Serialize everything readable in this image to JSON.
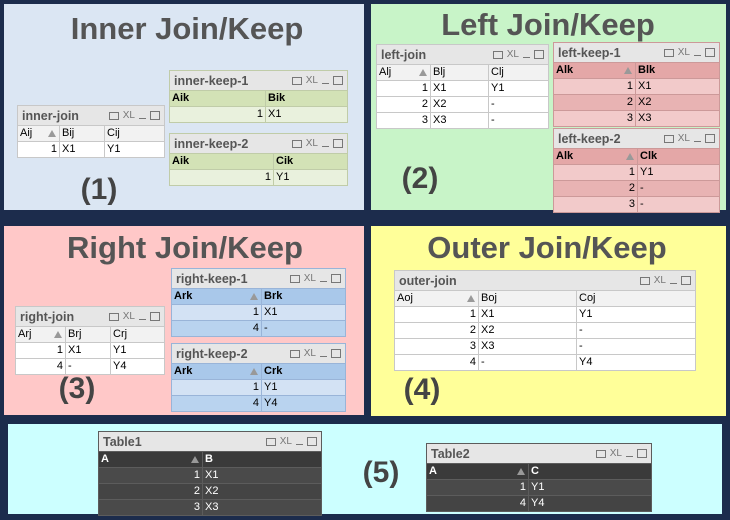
{
  "export_label": "XL",
  "panels": [
    {
      "title": "Inner Join/Keep",
      "label": "(1)",
      "tables": [
        {
          "name": "inner-join",
          "headers": [
            "Aij",
            "Bij",
            "Cij"
          ],
          "rows": [
            [
              1,
              "X1",
              "Y1"
            ]
          ]
        },
        {
          "name": "inner-keep-1",
          "headers": [
            "Aik",
            "Bik"
          ],
          "rows": [
            [
              1,
              "X1"
            ]
          ]
        },
        {
          "name": "inner-keep-2",
          "headers": [
            "Aik",
            "Cik"
          ],
          "rows": [
            [
              1,
              "Y1"
            ]
          ]
        }
      ]
    },
    {
      "title": "Left Join/Keep",
      "label": "(2)",
      "tables": [
        {
          "name": "left-join",
          "headers": [
            "Alj",
            "Blj",
            "Clj"
          ],
          "rows": [
            [
              1,
              "X1",
              "Y1"
            ],
            [
              2,
              "X2",
              "-"
            ],
            [
              3,
              "X3",
              "-"
            ]
          ]
        },
        {
          "name": "left-keep-1",
          "headers": [
            "Alk",
            "Blk"
          ],
          "rows": [
            [
              1,
              "X1"
            ],
            [
              2,
              "X2"
            ],
            [
              3,
              "X3"
            ]
          ]
        },
        {
          "name": "left-keep-2",
          "headers": [
            "Alk",
            "Clk"
          ],
          "rows": [
            [
              1,
              "Y1"
            ],
            [
              2,
              "-"
            ],
            [
              3,
              "-"
            ]
          ]
        }
      ]
    },
    {
      "title": "Right Join/Keep",
      "label": "(3)",
      "tables": [
        {
          "name": "right-join",
          "headers": [
            "Arj",
            "Brj",
            "Crj"
          ],
          "rows": [
            [
              1,
              "X1",
              "Y1"
            ],
            [
              4,
              "-",
              "Y4"
            ]
          ]
        },
        {
          "name": "right-keep-1",
          "headers": [
            "Ark",
            "Brk"
          ],
          "rows": [
            [
              1,
              "X1"
            ],
            [
              4,
              "-"
            ]
          ]
        },
        {
          "name": "right-keep-2",
          "headers": [
            "Ark",
            "Crk"
          ],
          "rows": [
            [
              1,
              "Y1"
            ],
            [
              4,
              "Y4"
            ]
          ]
        }
      ]
    },
    {
      "title": "Outer Join/Keep",
      "label": "(4)",
      "tables": [
        {
          "name": "outer-join",
          "headers": [
            "Aoj",
            "Boj",
            "Coj"
          ],
          "rows": [
            [
              1,
              "X1",
              "Y1"
            ],
            [
              2,
              "X2",
              "-"
            ],
            [
              3,
              "X3",
              "-"
            ],
            [
              4,
              "-",
              "Y4"
            ]
          ]
        }
      ]
    },
    {
      "label": "(5)",
      "tables": [
        {
          "name": "Table1",
          "headers": [
            "A",
            "B"
          ],
          "rows": [
            [
              1,
              "X1"
            ],
            [
              2,
              "X2"
            ],
            [
              3,
              "X3"
            ]
          ]
        },
        {
          "name": "Table2",
          "headers": [
            "A",
            "C"
          ],
          "rows": [
            [
              1,
              "Y1"
            ],
            [
              4,
              "Y4"
            ]
          ]
        }
      ]
    }
  ]
}
